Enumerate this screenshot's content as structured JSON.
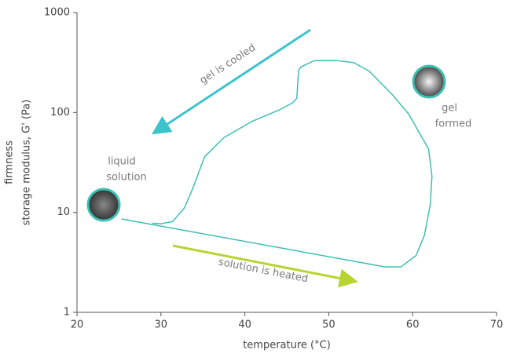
{
  "chart_data": {
    "type": "line",
    "x_label": "temperature (°C)",
    "y_label": [
      "firmness",
      "storage modulus, G' (Pa)"
    ],
    "log_y": true,
    "xlim": [
      20,
      70
    ],
    "xticks": [
      20,
      30,
      40,
      50,
      60,
      70
    ],
    "ylim": [
      1,
      1000
    ],
    "yticks": [
      1,
      10,
      100,
      1000
    ],
    "annotations": [
      "gel is cooled",
      "solution is heated",
      "liquid",
      "solution",
      "gel",
      "formed"
    ],
    "series": [
      {
        "color": "#3dbfb3",
        "x": [
          25.3,
          56.7,
          58.6,
          60.4,
          61.4,
          62.1,
          62.3,
          61.9,
          59.5,
          57.6,
          54.8,
          53,
          51.1,
          48.3,
          47.8,
          46.7,
          46.4,
          46.2,
          45.7,
          44.1,
          40.8,
          37.5,
          35.2,
          33.8,
          32.8,
          31.4,
          30,
          29
        ],
        "values": [
          8.6,
          2.85,
          2.85,
          3.7,
          5.9,
          12,
          23,
          43,
          97,
          150,
          260,
          315,
          330,
          330,
          316,
          287,
          263,
          139,
          125,
          106,
          81,
          56,
          36,
          17.4,
          11.1,
          8.1,
          7.7,
          7.8
        ]
      }
    ]
  }
}
